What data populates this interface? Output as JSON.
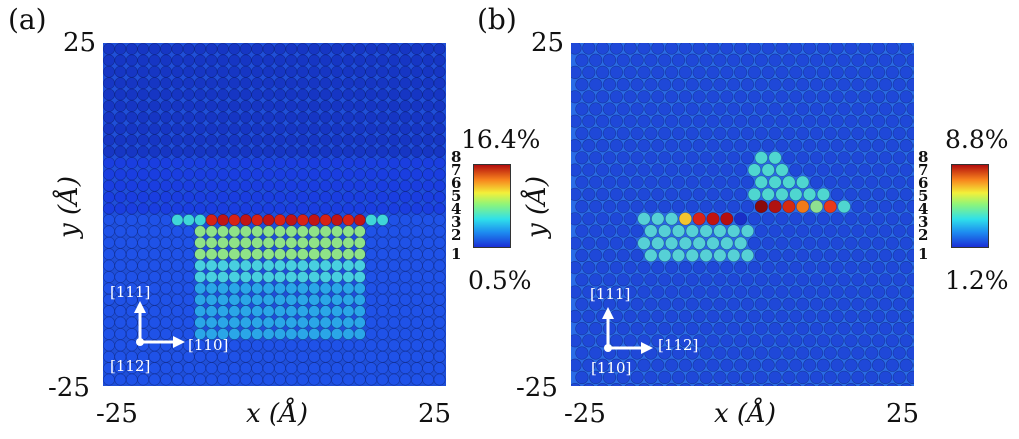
{
  "panels": [
    {
      "id": "a",
      "label": "(a)",
      "y_top_tick": "25",
      "y_bottom_tick": "-25",
      "x_left_tick": "-25",
      "x_right_tick": "25",
      "x_title": "x (Å)",
      "y_title": "y (Å)",
      "colorbar_max": "16.4%",
      "colorbar_min": "0.5%",
      "colorbar_levels": [
        "8",
        "7",
        "6",
        "5",
        "4",
        "3",
        "2",
        "1"
      ],
      "dir_vertical": "[111]",
      "dir_horizontal": "[110]",
      "dir_depth": "[112]",
      "colormap_stops": [
        "#1b2fd6",
        "#1d8cf0",
        "#2fe0ea",
        "#8ef57a",
        "#f3f03a",
        "#f7831d",
        "#b20d0d"
      ],
      "background_atom_color": "#1f4fd8"
    },
    {
      "id": "b",
      "label": "(b)",
      "y_top_tick": "25",
      "y_bottom_tick": "-25",
      "x_left_tick": "-25",
      "x_right_tick": "25",
      "x_title": "x (Å)",
      "y_title": "y (Å)",
      "colorbar_max": "8.8%",
      "colorbar_min": "1.2%",
      "colorbar_levels": [
        "8",
        "7",
        "6",
        "5",
        "4",
        "3",
        "2",
        "1"
      ],
      "dir_vertical": "[111]",
      "dir_horizontal": "[112]",
      "dir_depth": "[110]",
      "colormap_stops": [
        "#1b2fd6",
        "#1d8cf0",
        "#2fe0ea",
        "#8ef57a",
        "#f3f03a",
        "#f7831d",
        "#b20d0d"
      ],
      "background_atom_color": "#1f4fd8"
    }
  ]
}
